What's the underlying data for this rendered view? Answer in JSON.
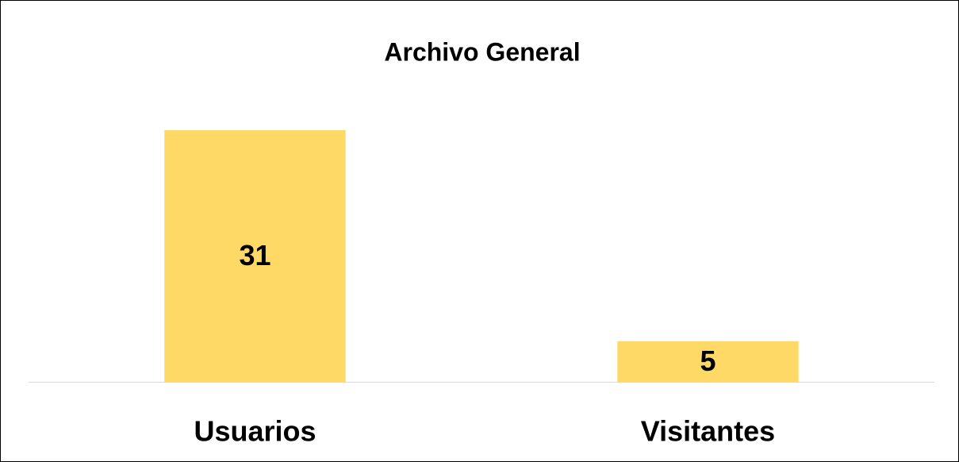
{
  "chart_data": {
    "type": "bar",
    "title": "Archivo General",
    "categories": [
      "Usuarios",
      "Visitantes"
    ],
    "values": [
      31,
      5
    ],
    "color": "#ffd966"
  }
}
